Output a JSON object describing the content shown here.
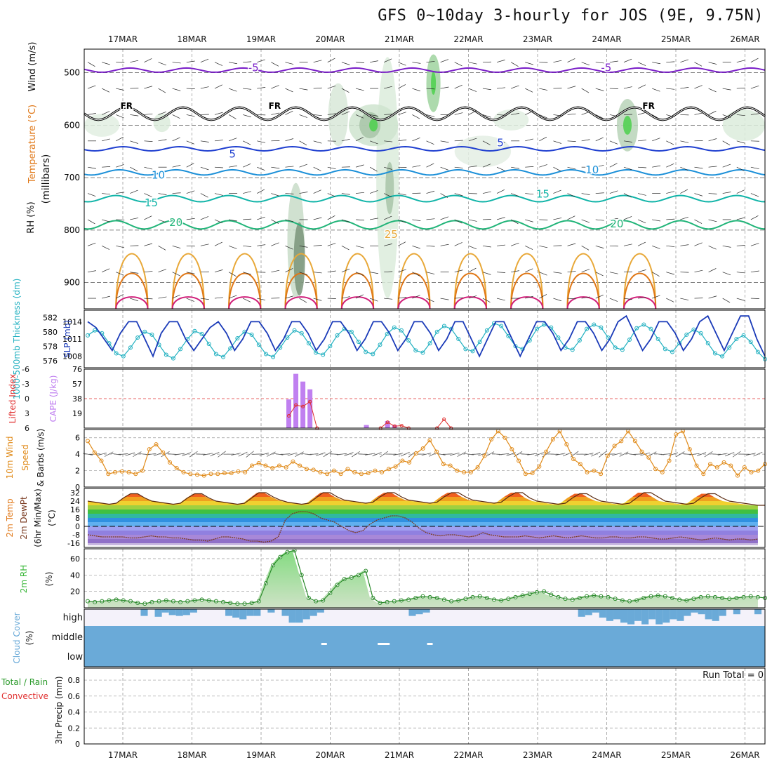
{
  "title": "GFS 0~10day 3-hourly for JOS (9E, 9.75N)",
  "colors": {
    "purple": "#7a1fc8",
    "blue_dark": "#1f3fd0",
    "blue": "#1a8fd8",
    "teal": "#10b4a8",
    "green": "#20b478",
    "orange_light": "#e8a838",
    "orange": "#e07818",
    "magenta": "#d0207a",
    "rh_green": "#4cd04c",
    "slp": "#1a3ab8",
    "thick": "#20b0c0",
    "cape": "#c080f0",
    "li": "#e03030",
    "wind": "#e08a18",
    "rh2m": "#3cb83c",
    "cloud": "#6aaad8",
    "cloud_bg": "#f4f2fa"
  },
  "chart_data": [
    {
      "panel": "upper-air",
      "type": "contour",
      "ylabel": "(millibars)",
      "left_labels": [
        "Wind (m/s)",
        "Temperature (°C)",
        "RH (%)"
      ],
      "yticks": [
        500,
        600,
        700,
        800,
        900
      ],
      "x_labels": [
        "17MAR",
        "18MAR",
        "19MAR",
        "20MAR",
        "21MAR",
        "22MAR",
        "23MAR",
        "24MAR",
        "25MAR",
        "26MAR"
      ],
      "contour_labels": [
        {
          "text": "-5",
          "t": 23.5,
          "p": 497,
          "c": "purple"
        },
        {
          "text": "-5",
          "t": 73.5,
          "p": 497,
          "c": "purple"
        },
        {
          "text": "5",
          "t": 20.5,
          "p": 662,
          "c": "blue_dark"
        },
        {
          "text": "5",
          "t": 58.5,
          "p": 640,
          "c": "blue_dark"
        },
        {
          "text": "10",
          "t": 10.0,
          "p": 702,
          "c": "blue"
        },
        {
          "text": "10",
          "t": 71.5,
          "p": 692,
          "c": "blue"
        },
        {
          "text": "15",
          "t": 9.0,
          "p": 755,
          "c": "teal"
        },
        {
          "text": "15",
          "t": 64.5,
          "p": 738,
          "c": "teal"
        },
        {
          "text": "20",
          "t": 12.5,
          "p": 792,
          "c": "green"
        },
        {
          "text": "20",
          "t": 75.0,
          "p": 795,
          "c": "green"
        },
        {
          "text": "25",
          "t": 43.0,
          "p": 815,
          "c": "orange_light"
        },
        {
          "text": "FR",
          "t": 5.5,
          "p": 569,
          "c": "black"
        },
        {
          "text": "FR",
          "t": 26.5,
          "p": 569,
          "c": "black"
        },
        {
          "text": "FR",
          "t": 79.5,
          "p": 569,
          "c": "black"
        }
      ]
    },
    {
      "panel": "thickness-slp",
      "type": "line",
      "left_labels": [
        "1000-500mb Thickness (dm)",
        "SLP (mb)"
      ],
      "left_ticks": [
        576,
        578,
        580,
        582
      ],
      "right_ticks": [
        1008,
        1011,
        1014
      ],
      "series": [
        {
          "name": "SLP",
          "values": [
            1014,
            1013,
            1011,
            1009,
            1012,
            1014,
            1014,
            1011,
            1008,
            1012,
            1014,
            1014,
            1011,
            1009,
            1011,
            1013,
            1014,
            1012,
            1009,
            1011,
            1014,
            1014,
            1012,
            1009,
            1011,
            1014,
            1014,
            1012,
            1009,
            1011,
            1014,
            1014,
            1012,
            1009,
            1011,
            1014,
            1014,
            1012,
            1009,
            1011,
            1014,
            1014,
            1012,
            1009,
            1011,
            1014,
            1014,
            1011,
            1008,
            1011,
            1014,
            1014,
            1011,
            1008,
            1011,
            1014,
            1014,
            1012,
            1009,
            1011,
            1014,
            1014,
            1012,
            1009,
            1011,
            1014,
            1015,
            1012,
            1009,
            1011,
            1014,
            1014,
            1012,
            1009,
            1011,
            1014,
            1015,
            1012,
            1009,
            1012,
            1015,
            1015,
            1011,
            1008
          ]
        },
        {
          "name": "Thickness",
          "values": [
            579.5,
            580.2,
            579.8,
            578.4,
            577.0,
            576.6,
            577.8,
            579.2,
            580.0,
            579.6,
            578.2,
            576.8,
            576.3,
            577.6,
            579.0,
            580.1,
            579.7,
            578.3,
            576.9,
            576.5,
            577.7,
            579.1,
            580.0,
            579.6,
            578.2,
            576.9,
            576.5,
            577.8,
            579.2,
            580.2,
            579.8,
            578.4,
            577.1,
            576.8,
            578.0,
            579.5,
            580.4,
            580.0,
            578.6,
            577.2,
            576.9,
            578.2,
            579.7,
            580.6,
            580.2,
            578.8,
            577.4,
            577.1,
            578.4,
            580.0,
            580.8,
            580.4,
            579.0,
            577.6,
            577.3,
            578.6,
            580.2,
            581.2,
            580.8,
            579.4,
            578.0,
            577.6,
            578.8,
            580.4,
            581.0,
            580.6,
            579.2,
            577.8,
            577.5,
            578.8,
            580.4,
            581.0,
            580.6,
            579.2,
            577.8,
            577.5,
            578.9,
            580.5,
            581.0,
            580.4,
            579.0,
            577.6,
            577.2,
            578.4,
            579.6,
            580.3,
            579.8,
            578.4,
            577.0,
            576.6,
            577.8,
            579.0,
            579.5,
            578.6,
            577.2,
            576.2
          ]
        }
      ]
    },
    {
      "panel": "cape-li",
      "type": "bar",
      "left_labels": [
        "Lifted Index",
        "CAPE (J/kg)"
      ],
      "left_ticks": [
        "-6",
        "-3",
        "0",
        "3",
        "6"
      ],
      "right_ticks": [
        19,
        38,
        57,
        76
      ],
      "cape": [
        {
          "t": 28.5,
          "v": 37
        },
        {
          "t": 29.5,
          "v": 70
        },
        {
          "t": 30.5,
          "v": 60
        },
        {
          "t": 31.5,
          "v": 50
        },
        {
          "t": 39.5,
          "v": 4
        },
        {
          "t": 42.5,
          "v": 9
        },
        {
          "t": 43.5,
          "v": 4
        }
      ],
      "li": [
        {
          "t": 28.5,
          "v": 3.5
        },
        {
          "t": 29.5,
          "v": 1.3
        },
        {
          "t": 30.5,
          "v": 1.6
        },
        {
          "t": 31.5,
          "v": 0.6
        },
        {
          "t": 32.5,
          "v": 6
        },
        {
          "t": 41.5,
          "v": 6
        },
        {
          "t": 42.5,
          "v": 4.8
        },
        {
          "t": 43.5,
          "v": 5.6
        },
        {
          "t": 44.5,
          "v": 5.5
        },
        {
          "t": 45.5,
          "v": 6
        },
        {
          "t": 49.5,
          "v": 6
        },
        {
          "t": 50.5,
          "v": 4.2
        },
        {
          "t": 51.5,
          "v": 6
        }
      ]
    },
    {
      "panel": "wind10m",
      "type": "line",
      "left_labels": [
        "10m Wind",
        "Speed",
        "& Barbs (m/s)"
      ],
      "yticks": [
        0,
        2,
        4,
        6
      ],
      "series": [
        {
          "name": "Speed",
          "values": [
            5.6,
            4.2,
            3.2,
            1.6,
            1.8,
            1.9,
            1.8,
            1.6,
            2.0,
            4.6,
            5.2,
            4.2,
            3.0,
            2.3,
            1.8,
            1.6,
            1.5,
            1.4,
            1.6,
            1.6,
            1.7,
            1.7,
            1.9,
            1.8,
            2.6,
            2.9,
            2.6,
            2.3,
            2.6,
            2.4,
            3.1,
            2.6,
            2.2,
            2.1,
            1.8,
            1.6,
            2.0,
            1.6,
            2.2,
            1.8,
            1.6,
            1.7,
            2.0,
            1.8,
            2.2,
            2.5,
            3.2,
            3.0,
            4.1,
            4.7,
            5.7,
            4.3,
            2.8,
            2.6,
            2.0,
            1.8,
            1.8,
            2.4,
            3.8,
            5.8,
            6.8,
            6.0,
            4.6,
            3.2,
            1.6,
            1.7,
            2.5,
            4.3,
            5.8,
            6.8,
            5.2,
            3.4,
            2.8,
            1.8,
            2.0,
            1.6,
            3.8,
            5.0,
            5.6,
            6.8,
            5.6,
            4.3,
            3.6,
            2.2,
            1.8,
            3.2,
            6.4,
            6.8,
            4.6,
            2.6,
            1.6,
            2.8,
            2.4,
            3.0,
            2.6,
            1.4,
            2.4,
            1.8,
            2.0,
            2.8
          ]
        }
      ]
    },
    {
      "panel": "temp2m",
      "type": "area",
      "left_labels": [
        "2m Temp",
        "2m DewPt",
        "(6hr Min/Max)",
        "(°C)"
      ],
      "yticks": [
        -16,
        -8,
        0,
        8,
        16,
        24,
        32
      ],
      "series": [
        {
          "name": "Temp",
          "values": [
            24,
            23,
            22,
            21,
            22,
            27,
            31,
            31,
            27,
            24,
            23,
            22,
            21,
            22,
            27,
            31,
            31,
            27,
            24,
            23,
            22,
            21,
            22,
            27,
            32,
            32,
            28,
            25,
            23,
            22,
            21,
            22,
            27,
            32,
            32,
            28,
            25,
            24,
            23,
            22,
            23,
            28,
            32,
            32,
            28,
            25,
            24,
            23,
            22,
            23,
            28,
            32,
            32,
            28,
            25,
            24,
            23,
            22,
            23,
            28,
            32,
            32,
            27,
            24,
            23,
            22,
            21,
            22,
            27,
            31,
            31,
            27,
            24,
            23,
            22,
            21,
            22,
            27,
            32,
            32,
            28,
            24,
            23,
            22,
            21,
            22,
            27,
            31,
            31,
            27,
            24,
            23,
            22,
            21,
            20,
            20
          ]
        },
        {
          "name": "DewPt",
          "values": [
            -8,
            -9,
            -10,
            -10,
            -10,
            -10,
            -11,
            -11,
            -10,
            -9,
            -10,
            -10,
            -11,
            -11,
            -12,
            -13,
            -13,
            -14,
            -12,
            -10,
            -10,
            -11,
            -12,
            -14,
            -14,
            -15,
            -14,
            -10,
            6,
            12,
            14,
            14,
            12,
            8,
            6,
            4,
            0,
            -4,
            -6,
            -4,
            2,
            6,
            8,
            10,
            10,
            8,
            4,
            -2,
            -6,
            -8,
            -9,
            -8,
            -8,
            -9,
            -10,
            -9,
            -6,
            -8,
            -9,
            -10,
            -10,
            -10,
            -9,
            -10,
            -11,
            -10,
            -9,
            -10,
            -11,
            -10,
            -9,
            -10,
            -11,
            -11,
            -10,
            -10,
            -11,
            -11,
            -10,
            -10,
            -11,
            -12,
            -12,
            -11,
            -10,
            -11,
            -12,
            -13,
            -12,
            -11,
            -12,
            -13,
            -12,
            -12,
            -13,
            -12
          ]
        }
      ]
    },
    {
      "panel": "rh2m",
      "type": "area",
      "left_labels": [
        "2m RH",
        "(%)"
      ],
      "yticks": [
        20,
        40,
        60
      ],
      "series": [
        {
          "name": "RH",
          "values": [
            8,
            7,
            8,
            9,
            10,
            9,
            8,
            6,
            5,
            7,
            8,
            9,
            8,
            7,
            8,
            9,
            10,
            9,
            8,
            7,
            6,
            5,
            5,
            6,
            8,
            30,
            52,
            62,
            68,
            70,
            40,
            12,
            8,
            9,
            18,
            28,
            35,
            37,
            40,
            45,
            12,
            6,
            7,
            8,
            9,
            10,
            12,
            14,
            13,
            12,
            10,
            8,
            9,
            11,
            13,
            14,
            12,
            10,
            9,
            11,
            13,
            15,
            17,
            19,
            20,
            16,
            13,
            11,
            10,
            12,
            14,
            15,
            14,
            13,
            11,
            9,
            8,
            9,
            12,
            14,
            15,
            14,
            12,
            10,
            9,
            11,
            13,
            14,
            13,
            12,
            11,
            12,
            13,
            14,
            13,
            12
          ]
        }
      ]
    },
    {
      "panel": "cloud",
      "type": "bar",
      "left_labels": [
        "Cloud Cover",
        "(%)"
      ],
      "ylabels": [
        "high",
        "middle",
        "low"
      ],
      "high": [
        0,
        0,
        0,
        0,
        0,
        0,
        0,
        0,
        0.4,
        0,
        0.45,
        0.2,
        0.35,
        0.4,
        0.35,
        0.2,
        0,
        0,
        0,
        0,
        0.4,
        0.5,
        0.6,
        0.4,
        0.4,
        0,
        0.2,
        0,
        0.4,
        0.8,
        0.8,
        0.6,
        0.4,
        0.2,
        0,
        0,
        0,
        0,
        0,
        0,
        0,
        0,
        0,
        0,
        0,
        0,
        0.4,
        0.3,
        0.2,
        0,
        0,
        0,
        0,
        0,
        0,
        0,
        0,
        0,
        0,
        0,
        0,
        0,
        0,
        0,
        0,
        0,
        0,
        0,
        0,
        0,
        0.45,
        0.35,
        0.2,
        0.5,
        0.7,
        0.6,
        0.8,
        0.9,
        0.7,
        0.9,
        0.6,
        0.9,
        0.8,
        0.6,
        0.7,
        0.4,
        0.2,
        0.3,
        0.6,
        0.7,
        0.4,
        0,
        0.3,
        0,
        0,
        0.3
      ],
      "middle_gaps": [
        33.5,
        41.5,
        41.8,
        42.1,
        42.4,
        48.5
      ]
    },
    {
      "panel": "precip",
      "type": "bar",
      "left_labels": [
        "Total / Rain",
        "Convective",
        "3hr Precip (mm)"
      ],
      "yticks": [
        0,
        0.2,
        0.4,
        0.6,
        0.8
      ],
      "annotation": "Run Total = 0",
      "values": []
    }
  ]
}
